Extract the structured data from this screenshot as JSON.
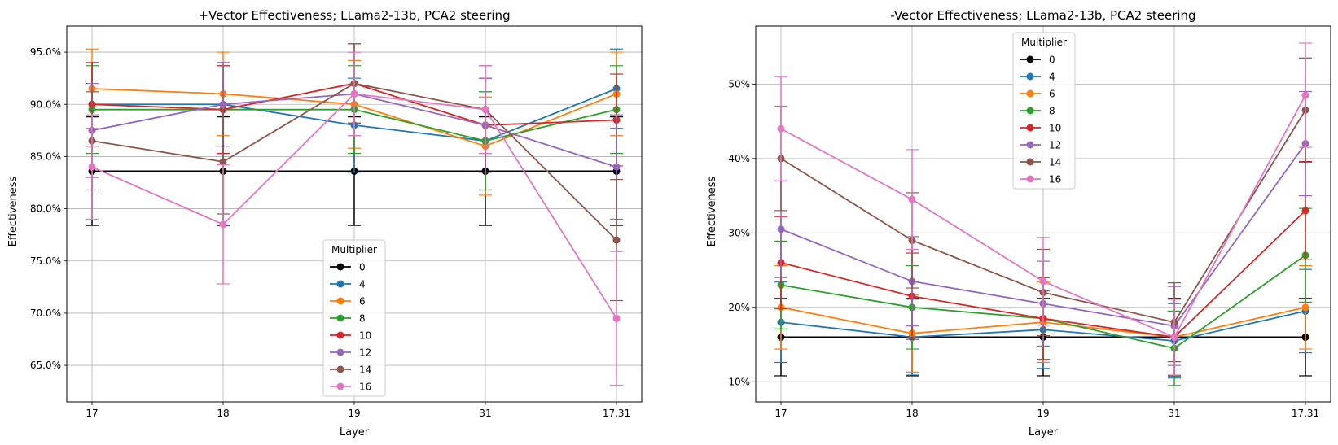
{
  "colors": {
    "0": "#000000",
    "4": "#1f77b4",
    "6": "#ff7f0e",
    "8": "#2ca02c",
    "10": "#d62728",
    "12": "#9467bd",
    "14": "#8c564b",
    "16": "#e377c2",
    "grid": "#b0b0b0"
  },
  "chart_data": [
    {
      "type": "line",
      "title": "+Vector Effectiveness; LLama2-13b, PCA2 steering",
      "xlabel": "Layer",
      "ylabel": "Effectiveness",
      "categories": [
        "17",
        "18",
        "19",
        "31",
        "17,31"
      ],
      "ylim": [
        0.615,
        0.975
      ],
      "yticks": [
        0.65,
        0.7,
        0.75,
        0.8,
        0.85,
        0.9,
        0.95
      ],
      "ytick_labels": [
        "65.0%",
        "70.0%",
        "75.0%",
        "80.0%",
        "85.0%",
        "90.0%",
        "95.0%"
      ],
      "grid": true,
      "legend": {
        "title": "Multiplier",
        "placement": "lower-center"
      },
      "series": [
        {
          "name": "0",
          "values": [
            0.836,
            0.836,
            0.836,
            0.836,
            0.836
          ],
          "err": [
            0.052,
            0.052,
            0.052,
            0.052,
            0.052
          ]
        },
        {
          "name": "4",
          "values": [
            0.9,
            0.9,
            0.88,
            0.865,
            0.915
          ],
          "err": [
            0.04,
            0.04,
            0.045,
            0.047,
            0.038
          ]
        },
        {
          "name": "6",
          "values": [
            0.915,
            0.91,
            0.9,
            0.86,
            0.91
          ],
          "err": [
            0.038,
            0.04,
            0.042,
            0.047,
            0.04
          ]
        },
        {
          "name": "8",
          "values": [
            0.895,
            0.895,
            0.895,
            0.865,
            0.895
          ],
          "err": [
            0.042,
            0.042,
            0.042,
            0.047,
            0.042
          ]
        },
        {
          "name": "10",
          "values": [
            0.9,
            0.895,
            0.92,
            0.88,
            0.885
          ],
          "err": [
            0.04,
            0.042,
            0.038,
            0.045,
            0.044
          ]
        },
        {
          "name": "12",
          "values": [
            0.875,
            0.9,
            0.91,
            0.88,
            0.84
          ],
          "err": [
            0.045,
            0.04,
            0.04,
            0.045,
            0.05
          ]
        },
        {
          "name": "14",
          "values": [
            0.865,
            0.845,
            0.92,
            0.895,
            0.77
          ],
          "err": [
            0.047,
            0.05,
            0.038,
            0.042,
            0.058
          ]
        },
        {
          "name": "16",
          "values": [
            0.84,
            0.785,
            0.91,
            0.895,
            0.695
          ],
          "err": [
            0.05,
            0.057,
            0.04,
            0.042,
            0.064
          ]
        }
      ]
    },
    {
      "type": "line",
      "title": "-Vector Effectiveness; LLama2-13b, PCA2 steering",
      "xlabel": "Layer",
      "ylabel": "Effectiveness",
      "categories": [
        "17",
        "18",
        "19",
        "31",
        "17,31"
      ],
      "ylim": [
        0.073,
        0.578
      ],
      "yticks": [
        0.1,
        0.2,
        0.3,
        0.4,
        0.5
      ],
      "ytick_labels": [
        "10%",
        "20%",
        "30%",
        "40%",
        "50%"
      ],
      "grid": true,
      "legend": {
        "title": "Multiplier",
        "placement": "upper-center"
      },
      "series": [
        {
          "name": "0",
          "values": [
            0.16,
            0.16,
            0.16,
            0.16,
            0.16
          ],
          "err": [
            0.052,
            0.052,
            0.052,
            0.052,
            0.052
          ]
        },
        {
          "name": "4",
          "values": [
            0.18,
            0.16,
            0.17,
            0.155,
            0.195
          ],
          "err": [
            0.054,
            0.051,
            0.052,
            0.05,
            0.056
          ]
        },
        {
          "name": "6",
          "values": [
            0.2,
            0.165,
            0.18,
            0.16,
            0.2
          ],
          "err": [
            0.056,
            0.052,
            0.054,
            0.051,
            0.056
          ]
        },
        {
          "name": "8",
          "values": [
            0.23,
            0.2,
            0.185,
            0.145,
            0.27
          ],
          "err": [
            0.059,
            0.056,
            0.055,
            0.05,
            0.063
          ]
        },
        {
          "name": "10",
          "values": [
            0.26,
            0.215,
            0.185,
            0.16,
            0.33
          ],
          "err": [
            0.062,
            0.058,
            0.055,
            0.051,
            0.066
          ]
        },
        {
          "name": "12",
          "values": [
            0.305,
            0.235,
            0.205,
            0.175,
            0.42
          ],
          "err": [
            0.065,
            0.06,
            0.057,
            0.053,
            0.07
          ]
        },
        {
          "name": "14",
          "values": [
            0.4,
            0.29,
            0.22,
            0.18,
            0.465
          ],
          "err": [
            0.07,
            0.064,
            0.058,
            0.053,
            0.07
          ]
        },
        {
          "name": "16",
          "values": [
            0.44,
            0.345,
            0.235,
            0.16,
            0.485
          ],
          "err": [
            0.07,
            0.067,
            0.059,
            0.051,
            0.07
          ]
        }
      ]
    }
  ]
}
